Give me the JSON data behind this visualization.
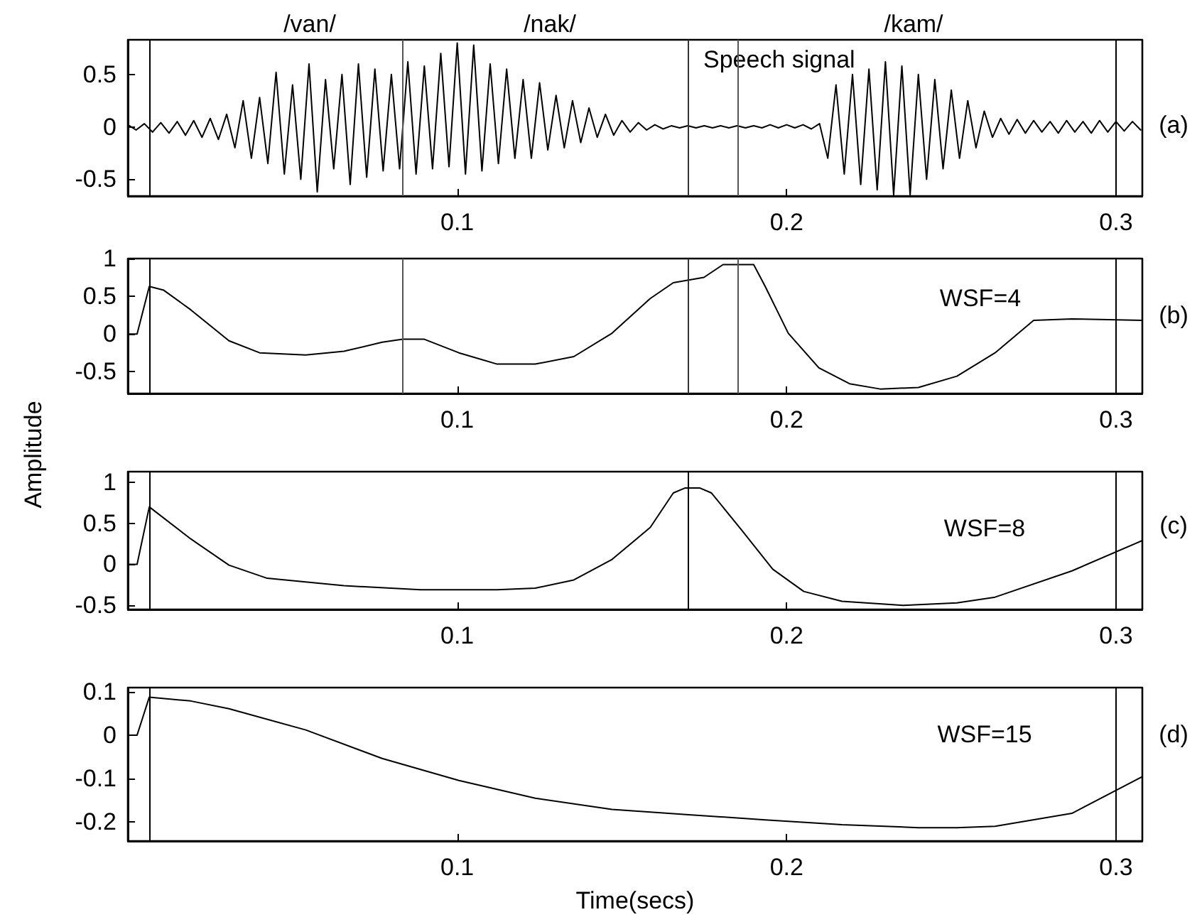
{
  "chart_data": [
    {
      "type": "line",
      "color": "#000000",
      "marker": "none",
      "line_style": "solid",
      "grid": false,
      "annotations": [
        "/van/",
        "/nak/",
        "/kam/",
        "Speech signal",
        "(a)"
      ],
      "x": [
        0,
        0.0025,
        0.005,
        0.0075,
        0.01,
        0.0125,
        0.015,
        0.0175,
        0.02,
        0.0225,
        0.025,
        0.0275,
        0.03,
        0.0325,
        0.035,
        0.0375,
        0.04,
        0.0425,
        0.045,
        0.0475,
        0.05,
        0.0525,
        0.055,
        0.0575,
        0.06,
        0.0625,
        0.065,
        0.0675,
        0.07,
        0.0725,
        0.075,
        0.0775,
        0.08,
        0.0825,
        0.085,
        0.0875,
        0.09,
        0.0925,
        0.095,
        0.0975,
        0.1,
        0.1025,
        0.105,
        0.1075,
        0.11,
        0.1125,
        0.115,
        0.1175,
        0.12,
        0.1225,
        0.125,
        0.1275,
        0.13,
        0.1325,
        0.135,
        0.1375,
        0.14,
        0.1425,
        0.145,
        0.1475,
        0.15,
        0.1525,
        0.155,
        0.1575,
        0.16,
        0.1625,
        0.165,
        0.1675,
        0.17,
        0.1725,
        0.175,
        0.1775,
        0.18,
        0.1825,
        0.185,
        0.1875,
        0.19,
        0.1925,
        0.195,
        0.1975,
        0.2,
        0.2025,
        0.205,
        0.2075,
        0.21,
        0.2125,
        0.215,
        0.2175,
        0.22,
        0.2225,
        0.225,
        0.2275,
        0.23,
        0.2325,
        0.235,
        0.2375,
        0.24,
        0.2425,
        0.245,
        0.2475,
        0.25,
        0.2525,
        0.255,
        0.2575,
        0.26,
        0.2625,
        0.265,
        0.2675,
        0.27,
        0.2725,
        0.275,
        0.2775,
        0.28,
        0.2825,
        0.285,
        0.2875,
        0.29,
        0.2925,
        0.295,
        0.2975,
        0.3,
        0.3025,
        0.305,
        0.3075
      ],
      "values": [
        0.02,
        -0.03,
        0.03,
        -0.05,
        0.04,
        -0.06,
        0.05,
        -0.08,
        0.06,
        -0.1,
        0.08,
        -0.12,
        0.12,
        -0.2,
        0.25,
        -0.3,
        0.28,
        -0.35,
        0.52,
        -0.45,
        0.4,
        -0.5,
        0.6,
        -0.62,
        0.45,
        -0.4,
        0.5,
        -0.55,
        0.6,
        -0.48,
        0.55,
        -0.42,
        0.5,
        -0.4,
        0.62,
        -0.45,
        0.58,
        -0.4,
        0.7,
        -0.38,
        0.8,
        -0.45,
        0.78,
        -0.42,
        0.6,
        -0.35,
        0.55,
        -0.3,
        0.45,
        -0.3,
        0.42,
        -0.22,
        0.3,
        -0.2,
        0.25,
        -0.15,
        0.18,
        -0.1,
        0.12,
        -0.08,
        0.06,
        -0.05,
        0.04,
        -0.03,
        0.02,
        -0.02,
        0.01,
        -0.01,
        0.01,
        -0.01,
        0.01,
        -0.01,
        0.01,
        -0.01,
        0.01,
        -0.01,
        0.01,
        -0.01,
        0.02,
        -0.01,
        0.02,
        -0.01,
        0.02,
        -0.02,
        0.03,
        -0.3,
        0.4,
        -0.45,
        0.5,
        -0.55,
        0.55,
        -0.6,
        0.62,
        -0.65,
        0.58,
        -0.65,
        0.5,
        -0.5,
        0.45,
        -0.4,
        0.35,
        -0.3,
        0.25,
        -0.2,
        0.15,
        -0.1,
        0.08,
        -0.07,
        0.07,
        -0.06,
        0.06,
        -0.05,
        0.05,
        -0.06,
        0.06,
        -0.05,
        0.05,
        -0.06,
        0.06,
        -0.05,
        0.05,
        -0.04,
        0.05,
        -0.03
      ],
      "xlim": [
        0,
        0.308
      ],
      "xticks": [
        0.1,
        0.2,
        0.3
      ],
      "ylim": [
        -0.66,
        0.83
      ],
      "yticks": [
        -0.5,
        0,
        0.5
      ],
      "ref_lines": [
        {
          "axis": "x",
          "value": 0.0065,
          "color": "#000000"
        },
        {
          "axis": "x",
          "value": 0.0835,
          "color": "#555555"
        },
        {
          "axis": "x",
          "value": 0.17,
          "color": "#333333"
        },
        {
          "axis": "x",
          "value": 0.185,
          "color": "#555555"
        },
        {
          "axis": "x",
          "value": 0.3,
          "color": "#000000"
        }
      ]
    },
    {
      "type": "line",
      "color": "#000000",
      "marker": "none",
      "line_style": "solid",
      "grid": false,
      "annotations": [
        "WSF=4",
        "(b)"
      ],
      "x": [
        0,
        0.0028,
        0.0065,
        0.0109,
        0.0191,
        0.0307,
        0.04,
        0.054,
        0.0656,
        0.0772,
        0.0835,
        0.09,
        0.1005,
        0.1121,
        0.1237,
        0.1354,
        0.147,
        0.1586,
        0.1656,
        0.1749,
        0.1807,
        0.19,
        0.1935,
        0.2005,
        0.2098,
        0.2191,
        0.2284,
        0.24,
        0.2517,
        0.2633,
        0.275,
        0.2866,
        0.308
      ],
      "values": [
        0,
        0,
        0.63,
        0.58,
        0.32,
        -0.09,
        -0.25,
        -0.28,
        -0.23,
        -0.11,
        -0.07,
        -0.07,
        -0.25,
        -0.4,
        -0.4,
        -0.3,
        0.01,
        0.47,
        0.68,
        0.75,
        0.92,
        0.92,
        0.63,
        0.01,
        -0.45,
        -0.66,
        -0.73,
        -0.71,
        -0.56,
        -0.25,
        0.18,
        0.2,
        0.18
      ],
      "xlim": [
        0,
        0.308
      ],
      "xticks": [
        0.1,
        0.2,
        0.3
      ],
      "ylim": [
        -0.79,
        1
      ],
      "yticks": [
        -0.5,
        0,
        0.5,
        1
      ],
      "ref_lines": [
        {
          "axis": "x",
          "value": 0.0065,
          "color": "#000000"
        },
        {
          "axis": "x",
          "value": 0.0835,
          "color": "#555555"
        },
        {
          "axis": "x",
          "value": 0.17,
          "color": "#333333"
        },
        {
          "axis": "x",
          "value": 0.185,
          "color": "#555555"
        },
        {
          "axis": "x",
          "value": 0.3,
          "color": "#000000"
        }
      ]
    },
    {
      "type": "line",
      "color": "#000000",
      "marker": "none",
      "line_style": "solid",
      "grid": false,
      "ylabel": "Amplitude",
      "annotations": [
        "WSF=8",
        "(c)"
      ],
      "x": [
        0,
        0.0028,
        0.0065,
        0.0191,
        0.0307,
        0.0423,
        0.0656,
        0.0889,
        0.1121,
        0.1237,
        0.1354,
        0.147,
        0.1586,
        0.1656,
        0.1691,
        0.1737,
        0.1772,
        0.1865,
        0.1958,
        0.2052,
        0.2168,
        0.2354,
        0.2517,
        0.2633,
        0.2866,
        0.308
      ],
      "values": [
        0,
        0,
        0.7,
        0.31,
        -0.01,
        -0.17,
        -0.26,
        -0.31,
        -0.31,
        -0.29,
        -0.19,
        0.06,
        0.45,
        0.87,
        0.93,
        0.93,
        0.87,
        0.41,
        -0.06,
        -0.33,
        -0.45,
        -0.5,
        -0.47,
        -0.4,
        -0.08,
        0.29
      ],
      "xlim": [
        0,
        0.308
      ],
      "xticks": [
        0.1,
        0.2,
        0.3
      ],
      "ylim": [
        -0.55,
        1.13
      ],
      "yticks": [
        -0.5,
        0,
        0.5,
        1
      ],
      "ref_lines": [
        {
          "axis": "x",
          "value": 0.0065,
          "color": "#000000"
        },
        {
          "axis": "x",
          "value": 0.17,
          "color": "#000000"
        },
        {
          "axis": "x",
          "value": 0.3,
          "color": "#000000"
        }
      ]
    },
    {
      "type": "line",
      "color": "#000000",
      "marker": "none",
      "line_style": "solid",
      "grid": false,
      "xlabel": "Time(secs)",
      "annotations": [
        "WSF=15",
        "(d)"
      ],
      "x": [
        0,
        0.0028,
        0.0065,
        0.0191,
        0.0307,
        0.054,
        0.0772,
        0.1005,
        0.1237,
        0.147,
        0.1703,
        0.1935,
        0.2168,
        0.24,
        0.2517,
        0.2633,
        0.2866,
        0.308
      ],
      "values": [
        0,
        0,
        0.088,
        0.079,
        0.061,
        0.012,
        -0.054,
        -0.105,
        -0.146,
        -0.172,
        -0.184,
        -0.196,
        -0.207,
        -0.214,
        -0.214,
        -0.211,
        -0.181,
        -0.096
      ],
      "xlim": [
        0,
        0.308
      ],
      "xticks": [
        0.1,
        0.2,
        0.3
      ],
      "ylim": [
        -0.245,
        0.11
      ],
      "yticks": [
        -0.2,
        -0.1,
        0,
        0.1
      ],
      "ref_lines": [
        {
          "axis": "x",
          "value": 0.0065,
          "color": "#000000"
        },
        {
          "axis": "x",
          "value": 0.3,
          "color": "#000000"
        }
      ]
    }
  ]
}
